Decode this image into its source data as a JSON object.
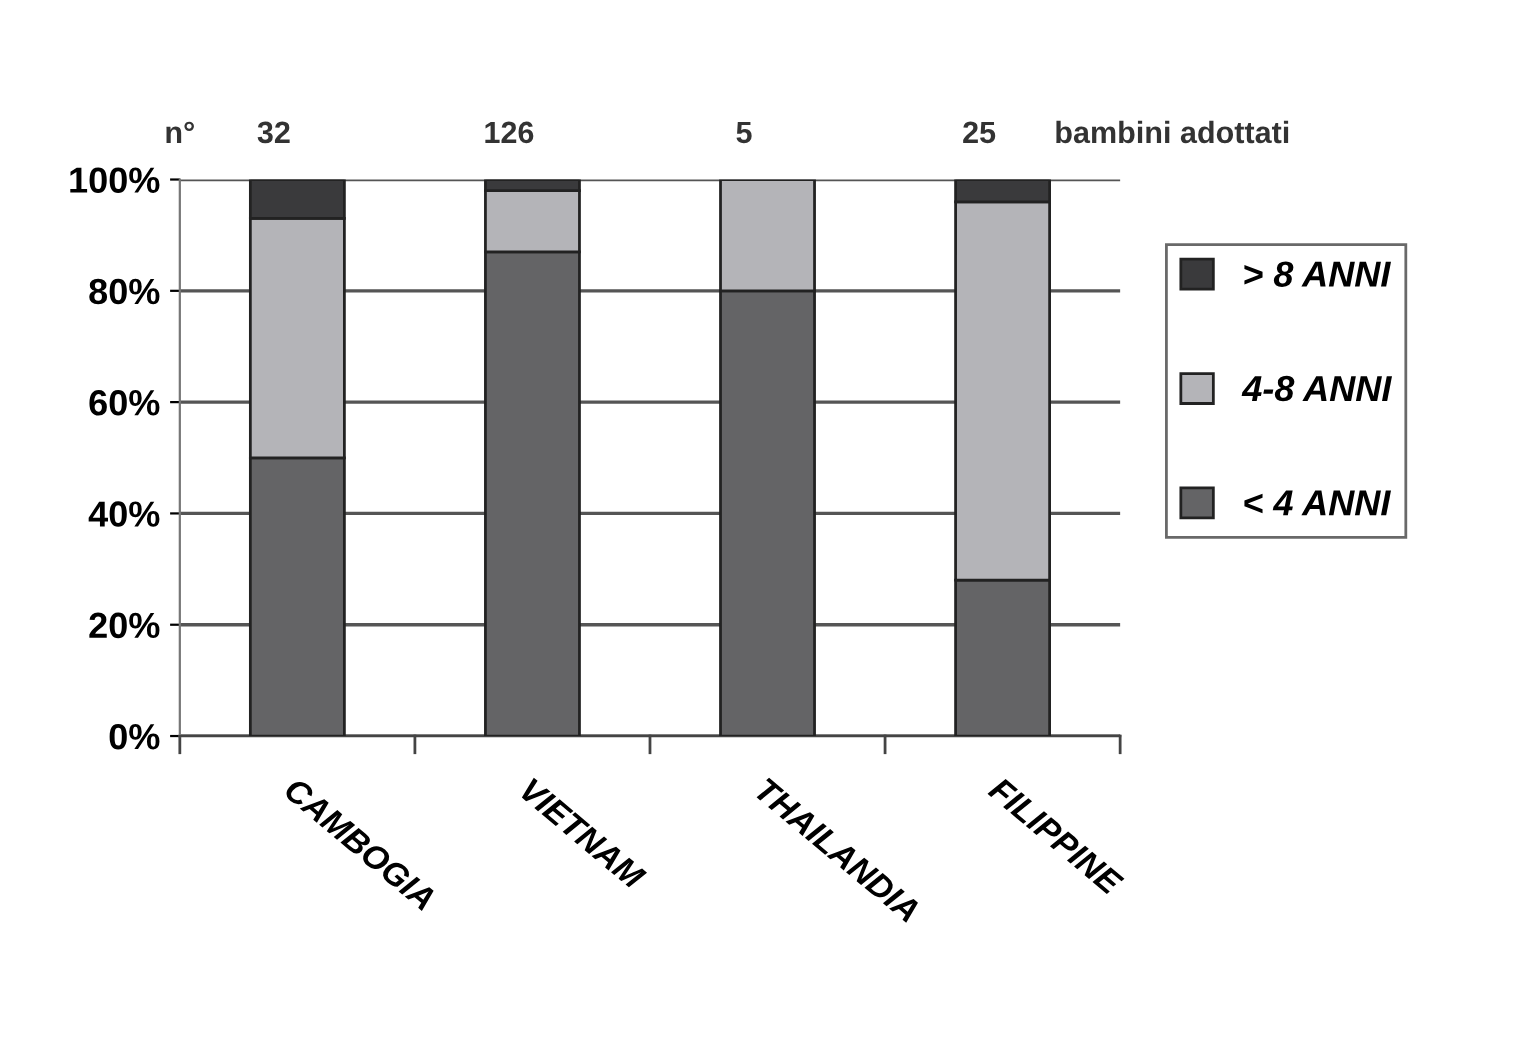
{
  "chart_data": {
    "type": "bar",
    "stacked": true,
    "categories": [
      "CAMBOGIA",
      "VIETNAM",
      "THAILANDIA",
      "FILIPPINE"
    ],
    "series": [
      {
        "name": "< 4 ANNI",
        "color": "#646466",
        "values": [
          50,
          87,
          80,
          28
        ]
      },
      {
        "name": "4-8 ANNI",
        "color": "#b4b4b8",
        "values": [
          43,
          11,
          20,
          68
        ]
      },
      {
        "name": "> 8 ANNI",
        "color": "#3a3a3c",
        "values": [
          7,
          2,
          null,
          4
        ]
      }
    ],
    "ylim": [
      0,
      100
    ],
    "yticks": [
      {
        "value": 0,
        "label": "0%"
      },
      {
        "value": 20,
        "label": "20%"
      },
      {
        "value": 40,
        "label": "40%"
      },
      {
        "value": 60,
        "label": "60%"
      },
      {
        "value": 80,
        "label": "80%"
      },
      {
        "value": 100,
        "label": "100%"
      }
    ],
    "grid": "y",
    "legend": "right",
    "annotations": [
      "n°",
      "32",
      "126",
      "5",
      "25",
      "bambini adottati"
    ]
  }
}
